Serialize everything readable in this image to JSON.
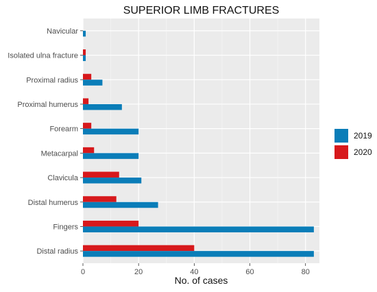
{
  "chart_data": {
    "type": "bar",
    "orientation": "horizontal",
    "title": "SUPERIOR LIMB FRACTURES",
    "xlabel": "No. of cases",
    "ylabel": "",
    "xlim": [
      0,
      85
    ],
    "x_ticks": [
      0,
      20,
      40,
      60,
      80
    ],
    "grid": true,
    "legend_position": "right",
    "categories": [
      "Navicular",
      "Isolated ulna fracture",
      "Proximal radius",
      "Proximal humerus",
      "Forearm",
      "Metacarpal",
      "Clavicula",
      "Distal humerus",
      "Fingers",
      "Distal radius"
    ],
    "series": [
      {
        "name": "2019",
        "color": "#0a7db8",
        "values": [
          1,
          1,
          7,
          14,
          20,
          20,
          21,
          27,
          83,
          83
        ]
      },
      {
        "name": "2020",
        "color": "#d7191c",
        "values": [
          0,
          1,
          3,
          2,
          3,
          4,
          13,
          12,
          20,
          40
        ]
      }
    ]
  }
}
